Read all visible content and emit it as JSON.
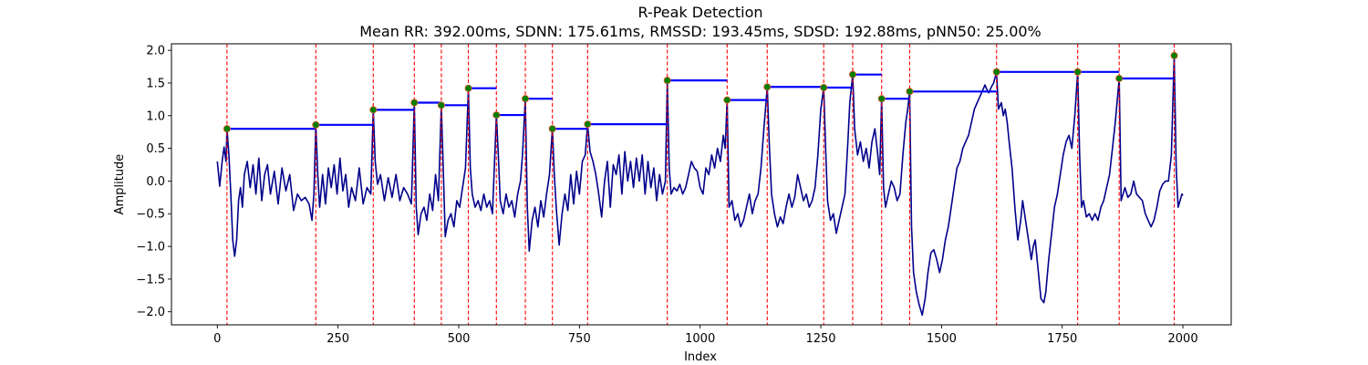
{
  "chart_data": {
    "type": "line",
    "title": "R-Peak Detection",
    "subtitle": "Mean RR: 392.00ms, SDNN: 175.61ms, RMSSD: 193.45ms, SDSD: 192.88ms, pNN50: 25.00%",
    "xlabel": "Index",
    "ylabel": "Amplitude",
    "xlim": [
      -95,
      2100
    ],
    "ylim": [
      -2.2,
      2.1
    ],
    "xticks": [
      0,
      250,
      500,
      750,
      1000,
      1250,
      1500,
      1750,
      2000
    ],
    "yticks": [
      -2.0,
      -1.5,
      -1.0,
      -0.5,
      0.0,
      0.5,
      1.0,
      1.5,
      2.0
    ],
    "xtick_labels": [
      "0",
      "250",
      "500",
      "750",
      "1000",
      "1250",
      "1500",
      "1750",
      "2000"
    ],
    "ytick_labels": [
      "−2.0",
      "−1.5",
      "−1.0",
      "−0.5",
      "0.0",
      "0.5",
      "1.0",
      "1.5",
      "2.0"
    ],
    "grid": false,
    "colors": {
      "signal": "#00008b",
      "peak_lines": "#ff0000",
      "rr_segments": "#0000ff",
      "peak_marker": "#008000"
    },
    "peaks": [
      {
        "x": 20,
        "y": 0.8
      },
      {
        "x": 204,
        "y": 0.86
      },
      {
        "x": 323,
        "y": 1.09
      },
      {
        "x": 408,
        "y": 1.2
      },
      {
        "x": 464,
        "y": 1.16
      },
      {
        "x": 520,
        "y": 1.42
      },
      {
        "x": 578,
        "y": 1.01
      },
      {
        "x": 638,
        "y": 1.26
      },
      {
        "x": 694,
        "y": 0.8
      },
      {
        "x": 767,
        "y": 0.87
      },
      {
        "x": 932,
        "y": 1.54
      },
      {
        "x": 1056,
        "y": 1.24
      },
      {
        "x": 1139,
        "y": 1.44
      },
      {
        "x": 1256,
        "y": 1.43
      },
      {
        "x": 1316,
        "y": 1.63
      },
      {
        "x": 1376,
        "y": 1.26
      },
      {
        "x": 1434,
        "y": 1.37
      },
      {
        "x": 1614,
        "y": 1.67
      },
      {
        "x": 1782,
        "y": 1.67
      },
      {
        "x": 1868,
        "y": 1.57
      },
      {
        "x": 1982,
        "y": 1.92
      }
    ],
    "rr_segments": [
      {
        "x_start": 20,
        "x_end": 204,
        "y": 0.8
      },
      {
        "x_start": 204,
        "x_end": 323,
        "y": 0.86
      },
      {
        "x_start": 323,
        "x_end": 408,
        "y": 1.09
      },
      {
        "x_start": 408,
        "x_end": 464,
        "y": 1.2
      },
      {
        "x_start": 464,
        "x_end": 520,
        "y": 1.16
      },
      {
        "x_start": 520,
        "x_end": 578,
        "y": 1.42
      },
      {
        "x_start": 578,
        "x_end": 638,
        "y": 1.01
      },
      {
        "x_start": 638,
        "x_end": 694,
        "y": 1.26
      },
      {
        "x_start": 694,
        "x_end": 767,
        "y": 0.8
      },
      {
        "x_start": 767,
        "x_end": 932,
        "y": 0.87
      },
      {
        "x_start": 932,
        "x_end": 1056,
        "y": 1.54
      },
      {
        "x_start": 1056,
        "x_end": 1139,
        "y": 1.24
      },
      {
        "x_start": 1139,
        "x_end": 1256,
        "y": 1.44
      },
      {
        "x_start": 1256,
        "x_end": 1316,
        "y": 1.43
      },
      {
        "x_start": 1316,
        "x_end": 1376,
        "y": 1.63
      },
      {
        "x_start": 1376,
        "x_end": 1434,
        "y": 1.26
      },
      {
        "x_start": 1434,
        "x_end": 1614,
        "y": 1.37
      },
      {
        "x_start": 1614,
        "x_end": 1782,
        "y": 1.67
      },
      {
        "x_start": 1782,
        "x_end": 1868,
        "y": 1.67
      },
      {
        "x_start": 1868,
        "x_end": 1982,
        "y": 1.57
      }
    ],
    "signal": [
      [
        0,
        0.3
      ],
      [
        5,
        -0.08
      ],
      [
        10,
        0.3
      ],
      [
        14,
        0.52
      ],
      [
        18,
        0.3
      ],
      [
        20,
        0.8
      ],
      [
        24,
        0.4
      ],
      [
        28,
        -0.2
      ],
      [
        32,
        -0.9
      ],
      [
        36,
        -1.15
      ],
      [
        40,
        -0.9
      ],
      [
        44,
        -0.3
      ],
      [
        48,
        -0.1
      ],
      [
        52,
        -0.4
      ],
      [
        56,
        0.1
      ],
      [
        62,
        0.3
      ],
      [
        68,
        -0.1
      ],
      [
        74,
        0.25
      ],
      [
        80,
        -0.2
      ],
      [
        86,
        0.35
      ],
      [
        92,
        -0.3
      ],
      [
        98,
        0.1
      ],
      [
        104,
        0.25
      ],
      [
        110,
        -0.2
      ],
      [
        118,
        0.15
      ],
      [
        126,
        -0.35
      ],
      [
        134,
        0.2
      ],
      [
        142,
        -0.15
      ],
      [
        150,
        0.1
      ],
      [
        158,
        -0.45
      ],
      [
        166,
        -0.2
      ],
      [
        174,
        -0.3
      ],
      [
        182,
        -0.25
      ],
      [
        190,
        -0.35
      ],
      [
        196,
        -0.6
      ],
      [
        200,
        -0.2
      ],
      [
        204,
        0.86
      ],
      [
        208,
        0.1
      ],
      [
        212,
        -0.4
      ],
      [
        218,
        0.1
      ],
      [
        224,
        -0.35
      ],
      [
        230,
        0.2
      ],
      [
        236,
        -0.1
      ],
      [
        242,
        0.25
      ],
      [
        248,
        -0.2
      ],
      [
        254,
        0.35
      ],
      [
        260,
        -0.15
      ],
      [
        266,
        0.1
      ],
      [
        272,
        -0.4
      ],
      [
        278,
        -0.1
      ],
      [
        286,
        -0.3
      ],
      [
        294,
        0.2
      ],
      [
        302,
        -0.35
      ],
      [
        310,
        -0.1
      ],
      [
        318,
        -0.2
      ],
      [
        323,
        1.09
      ],
      [
        327,
        0.3
      ],
      [
        332,
        -0.05
      ],
      [
        338,
        0.1
      ],
      [
        346,
        -0.3
      ],
      [
        354,
        0.05
      ],
      [
        362,
        -0.25
      ],
      [
        370,
        0.1
      ],
      [
        378,
        -0.3
      ],
      [
        386,
        -0.1
      ],
      [
        394,
        -0.2
      ],
      [
        402,
        -0.35
      ],
      [
        408,
        1.2
      ],
      [
        412,
        -0.4
      ],
      [
        416,
        -0.82
      ],
      [
        422,
        -0.5
      ],
      [
        428,
        -0.4
      ],
      [
        434,
        -0.6
      ],
      [
        440,
        -0.2
      ],
      [
        446,
        -0.45
      ],
      [
        452,
        0.1
      ],
      [
        458,
        -0.3
      ],
      [
        464,
        1.16
      ],
      [
        468,
        0.2
      ],
      [
        472,
        -0.85
      ],
      [
        478,
        -0.6
      ],
      [
        484,
        -0.5
      ],
      [
        490,
        -0.7
      ],
      [
        496,
        -0.3
      ],
      [
        502,
        -0.4
      ],
      [
        508,
        -0.1
      ],
      [
        514,
        0.2
      ],
      [
        520,
        1.42
      ],
      [
        524,
        0.2
      ],
      [
        528,
        -0.2
      ],
      [
        534,
        -0.4
      ],
      [
        540,
        -0.3
      ],
      [
        546,
        -0.45
      ],
      [
        552,
        -0.2
      ],
      [
        558,
        -0.4
      ],
      [
        564,
        -0.3
      ],
      [
        570,
        -0.5
      ],
      [
        578,
        1.01
      ],
      [
        582,
        0.4
      ],
      [
        586,
        -0.3
      ],
      [
        592,
        -0.5
      ],
      [
        598,
        -0.2
      ],
      [
        604,
        -0.4
      ],
      [
        610,
        -0.3
      ],
      [
        616,
        -0.55
      ],
      [
        622,
        -0.2
      ],
      [
        628,
        0.0
      ],
      [
        632,
        0.4
      ],
      [
        638,
        1.26
      ],
      [
        642,
        -0.4
      ],
      [
        646,
        -1.07
      ],
      [
        652,
        -0.6
      ],
      [
        658,
        -0.4
      ],
      [
        664,
        -0.7
      ],
      [
        670,
        -0.3
      ],
      [
        676,
        -0.55
      ],
      [
        682,
        -0.2
      ],
      [
        688,
        0.1
      ],
      [
        694,
        0.8
      ],
      [
        698,
        0.1
      ],
      [
        702,
        -0.4
      ],
      [
        708,
        -0.98
      ],
      [
        714,
        -0.5
      ],
      [
        720,
        -0.2
      ],
      [
        726,
        -0.45
      ],
      [
        732,
        0.1
      ],
      [
        738,
        -0.35
      ],
      [
        744,
        0.15
      ],
      [
        750,
        -0.2
      ],
      [
        756,
        0.3
      ],
      [
        762,
        0.4
      ],
      [
        767,
        0.87
      ],
      [
        772,
        0.45
      ],
      [
        778,
        0.3
      ],
      [
        784,
        0.1
      ],
      [
        790,
        -0.2
      ],
      [
        796,
        -0.55
      ],
      [
        802,
        0.0
      ],
      [
        808,
        0.3
      ],
      [
        814,
        -0.4
      ],
      [
        820,
        0.25
      ],
      [
        826,
        0.1
      ],
      [
        832,
        0.4
      ],
      [
        838,
        -0.2
      ],
      [
        844,
        0.45
      ],
      [
        850,
        0.0
      ],
      [
        856,
        0.3
      ],
      [
        862,
        -0.1
      ],
      [
        868,
        0.35
      ],
      [
        874,
        0.0
      ],
      [
        880,
        0.4
      ],
      [
        886,
        -0.2
      ],
      [
        892,
        0.3
      ],
      [
        898,
        -0.1
      ],
      [
        904,
        0.2
      ],
      [
        910,
        -0.3
      ],
      [
        916,
        0.1
      ],
      [
        922,
        -0.2
      ],
      [
        928,
        0.0
      ],
      [
        932,
        1.54
      ],
      [
        936,
        0.2
      ],
      [
        940,
        -0.2
      ],
      [
        946,
        -0.1
      ],
      [
        952,
        -0.15
      ],
      [
        958,
        -0.05
      ],
      [
        964,
        -0.2
      ],
      [
        970,
        -0.1
      ],
      [
        976,
        0.1
      ],
      [
        982,
        0.3
      ],
      [
        988,
        0.2
      ],
      [
        994,
        0.15
      ],
      [
        1000,
        -0.1
      ],
      [
        1006,
        -0.2
      ],
      [
        1012,
        0.2
      ],
      [
        1018,
        0.1
      ],
      [
        1024,
        0.4
      ],
      [
        1030,
        0.2
      ],
      [
        1036,
        0.5
      ],
      [
        1042,
        0.3
      ],
      [
        1048,
        0.7
      ],
      [
        1052,
        0.5
      ],
      [
        1056,
        1.24
      ],
      [
        1060,
        -0.4
      ],
      [
        1066,
        -0.3
      ],
      [
        1072,
        -0.6
      ],
      [
        1078,
        -0.5
      ],
      [
        1084,
        -0.7
      ],
      [
        1090,
        -0.6
      ],
      [
        1096,
        -0.4
      ],
      [
        1102,
        -0.2
      ],
      [
        1108,
        -0.5
      ],
      [
        1114,
        -0.3
      ],
      [
        1120,
        -0.2
      ],
      [
        1126,
        0.2
      ],
      [
        1132,
        0.8
      ],
      [
        1139,
        1.44
      ],
      [
        1143,
        0.6
      ],
      [
        1148,
        -0.2
      ],
      [
        1154,
        -0.5
      ],
      [
        1160,
        -0.7
      ],
      [
        1166,
        -0.55
      ],
      [
        1172,
        -0.65
      ],
      [
        1178,
        -0.4
      ],
      [
        1184,
        -0.2
      ],
      [
        1190,
        -0.4
      ],
      [
        1196,
        -0.25
      ],
      [
        1202,
        0.1
      ],
      [
        1208,
        -0.1
      ],
      [
        1214,
        -0.3
      ],
      [
        1220,
        -0.2
      ],
      [
        1226,
        -0.4
      ],
      [
        1232,
        -0.3
      ],
      [
        1238,
        -0.1
      ],
      [
        1244,
        0.4
      ],
      [
        1250,
        1.1
      ],
      [
        1256,
        1.43
      ],
      [
        1260,
        0.5
      ],
      [
        1264,
        -0.3
      ],
      [
        1270,
        -0.6
      ],
      [
        1276,
        -0.5
      ],
      [
        1282,
        -0.8
      ],
      [
        1288,
        -0.6
      ],
      [
        1294,
        -0.4
      ],
      [
        1300,
        -0.2
      ],
      [
        1306,
        0.6
      ],
      [
        1310,
        1.2
      ],
      [
        1316,
        1.63
      ],
      [
        1320,
        0.8
      ],
      [
        1326,
        0.4
      ],
      [
        1332,
        0.6
      ],
      [
        1338,
        0.3
      ],
      [
        1344,
        0.5
      ],
      [
        1350,
        0.2
      ],
      [
        1356,
        0.6
      ],
      [
        1362,
        0.8
      ],
      [
        1368,
        0.4
      ],
      [
        1372,
        0.1
      ],
      [
        1376,
        1.26
      ],
      [
        1380,
        -0.1
      ],
      [
        1384,
        -0.4
      ],
      [
        1390,
        -0.2
      ],
      [
        1396,
        0.0
      ],
      [
        1402,
        -0.1
      ],
      [
        1408,
        -0.3
      ],
      [
        1414,
        -0.2
      ],
      [
        1420,
        0.4
      ],
      [
        1426,
        0.9
      ],
      [
        1430,
        1.1
      ],
      [
        1434,
        1.37
      ],
      [
        1438,
        -0.7
      ],
      [
        1442,
        -1.4
      ],
      [
        1448,
        -1.7
      ],
      [
        1454,
        -1.9
      ],
      [
        1460,
        -2.05
      ],
      [
        1466,
        -1.8
      ],
      [
        1472,
        -1.4
      ],
      [
        1478,
        -1.1
      ],
      [
        1484,
        -1.05
      ],
      [
        1490,
        -1.2
      ],
      [
        1496,
        -1.4
      ],
      [
        1502,
        -1.2
      ],
      [
        1508,
        -0.9
      ],
      [
        1514,
        -0.7
      ],
      [
        1520,
        -0.4
      ],
      [
        1526,
        -0.1
      ],
      [
        1532,
        0.2
      ],
      [
        1538,
        0.3
      ],
      [
        1544,
        0.5
      ],
      [
        1550,
        0.6
      ],
      [
        1556,
        0.7
      ],
      [
        1562,
        0.9
      ],
      [
        1568,
        1.1
      ],
      [
        1574,
        1.2
      ],
      [
        1580,
        1.3
      ],
      [
        1586,
        1.4
      ],
      [
        1590,
        1.47
      ],
      [
        1594,
        1.4
      ],
      [
        1598,
        1.35
      ],
      [
        1604,
        1.45
      ],
      [
        1608,
        1.5
      ],
      [
        1614,
        1.67
      ],
      [
        1618,
        1.1
      ],
      [
        1624,
        1.2
      ],
      [
        1628,
        1.0
      ],
      [
        1632,
        1.1
      ],
      [
        1636,
        0.9
      ],
      [
        1640,
        0.6
      ],
      [
        1646,
        0.2
      ],
      [
        1652,
        -0.4
      ],
      [
        1658,
        -0.9
      ],
      [
        1664,
        -0.6
      ],
      [
        1668,
        -0.3
      ],
      [
        1674,
        -0.6
      ],
      [
        1680,
        -0.9
      ],
      [
        1686,
        -1.2
      ],
      [
        1690,
        -1.0
      ],
      [
        1694,
        -0.9
      ],
      [
        1698,
        -1.2
      ],
      [
        1702,
        -1.5
      ],
      [
        1706,
        -1.8
      ],
      [
        1712,
        -1.86
      ],
      [
        1716,
        -1.7
      ],
      [
        1722,
        -1.2
      ],
      [
        1728,
        -0.8
      ],
      [
        1734,
        -0.4
      ],
      [
        1740,
        -0.2
      ],
      [
        1746,
        0.1
      ],
      [
        1752,
        0.4
      ],
      [
        1758,
        0.6
      ],
      [
        1764,
        0.7
      ],
      [
        1770,
        0.5
      ],
      [
        1776,
        1.0
      ],
      [
        1782,
        1.67
      ],
      [
        1786,
        0.4
      ],
      [
        1790,
        -0.4
      ],
      [
        1794,
        -0.3
      ],
      [
        1800,
        -0.55
      ],
      [
        1806,
        -0.5
      ],
      [
        1812,
        -0.6
      ],
      [
        1818,
        -0.5
      ],
      [
        1824,
        -0.6
      ],
      [
        1830,
        -0.4
      ],
      [
        1836,
        -0.3
      ],
      [
        1842,
        -0.1
      ],
      [
        1848,
        0.1
      ],
      [
        1854,
        0.5
      ],
      [
        1860,
        0.9
      ],
      [
        1868,
        1.57
      ],
      [
        1872,
        -0.3
      ],
      [
        1876,
        -0.2
      ],
      [
        1880,
        -0.1
      ],
      [
        1886,
        -0.25
      ],
      [
        1892,
        -0.2
      ],
      [
        1898,
        0.0
      ],
      [
        1904,
        -0.2
      ],
      [
        1910,
        -0.25
      ],
      [
        1916,
        -0.3
      ],
      [
        1922,
        -0.5
      ],
      [
        1928,
        -0.6
      ],
      [
        1934,
        -0.7
      ],
      [
        1940,
        -0.6
      ],
      [
        1946,
        -0.4
      ],
      [
        1952,
        -0.15
      ],
      [
        1958,
        -0.05
      ],
      [
        1964,
        0.0
      ],
      [
        1970,
        0.0
      ],
      [
        1976,
        0.4
      ],
      [
        1982,
        1.92
      ],
      [
        1986,
        0.2
      ],
      [
        1990,
        -0.4
      ],
      [
        1994,
        -0.3
      ],
      [
        1998,
        -0.2
      ],
      [
        2000,
        -0.22
      ]
    ]
  }
}
